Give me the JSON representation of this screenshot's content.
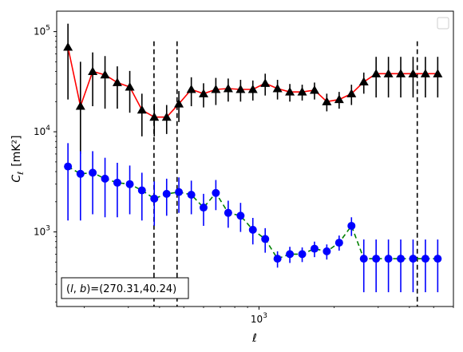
{
  "chart_data": {
    "type": "line",
    "title": "",
    "xlabel": "ℓ",
    "ylabel": "C",
    "ylabel_subscript": "ℓ",
    "ylabel_unit": "[mK²]",
    "x_scale": "log",
    "y_scale": "log",
    "xlim": [
      155,
      6000
    ],
    "ylim": [
      180,
      160000
    ],
    "x_tick_labels": [
      {
        "value": 1000,
        "base": "10",
        "exp": "3"
      }
    ],
    "y_tick_labels": [
      {
        "value": 1000,
        "base": "10",
        "exp": "3"
      },
      {
        "value": 10000,
        "base": "10",
        "exp": "4"
      },
      {
        "value": 100000,
        "base": "10",
        "exp": "5"
      }
    ],
    "grid": false,
    "legend": "top-right (empty box)",
    "annotation": {
      "text": "(l, b)=(270.31,40.24)",
      "prefix": "(",
      "l": "l",
      "sep": ", ",
      "b": "b",
      "suffix": ")=(270.31,40.24)",
      "position": "bottom-left"
    },
    "vlines": [
      380,
      470,
      4300
    ],
    "series": [
      {
        "line_color": "#ff0000",
        "marker_color": "#000000",
        "marker": "triangle",
        "line_style": "solid",
        "x": [
          172,
          193,
          216,
          242,
          271,
          304,
          340,
          381,
          427,
          478,
          536,
          600,
          672,
          753,
          844,
          945,
          1059,
          1186,
          1329,
          1489,
          1668,
          1868,
          2093,
          2345,
          2627,
          2943,
          3297,
          3693,
          4137,
          4635,
          5192
        ],
        "y": [
          70000,
          18000,
          40000,
          37000,
          31000,
          28000,
          16500,
          14000,
          14000,
          19000,
          26500,
          24000,
          26500,
          27000,
          26500,
          26500,
          30500,
          27000,
          25000,
          25000,
          26000,
          20000,
          21000,
          24000,
          31500,
          38000,
          38000,
          38000,
          38000,
          38000,
          38000
        ],
        "y_err_low": [
          49000,
          12000,
          22000,
          20000,
          14000,
          12500,
          7500,
          5000,
          4500,
          6500,
          8500,
          6500,
          8000,
          7000,
          6500,
          6000,
          7500,
          6000,
          5000,
          4500,
          5000,
          4000,
          4000,
          5500,
          7500,
          16000,
          16000,
          16000,
          16000,
          16000,
          16000
        ],
        "y_err_high": [
          50000,
          32000,
          22000,
          20000,
          14000,
          12500,
          7500,
          5000,
          4500,
          6500,
          8500,
          6500,
          8000,
          7000,
          6500,
          6000,
          7500,
          6000,
          5000,
          4500,
          5000,
          4000,
          4000,
          5500,
          7500,
          18000,
          18000,
          18000,
          18000,
          18000,
          18000
        ]
      },
      {
        "line_color": "#008000",
        "marker_color": "#0000ff",
        "marker": "circle",
        "line_style": "dashed",
        "x": [
          172,
          193,
          216,
          242,
          271,
          304,
          340,
          381,
          427,
          478,
          536,
          600,
          672,
          753,
          844,
          945,
          1059,
          1186,
          1329,
          1489,
          1668,
          1868,
          2093,
          2345,
          2627,
          2943,
          3297,
          3693,
          4137,
          4635,
          5192
        ],
        "y": [
          4500,
          3800,
          3900,
          3400,
          3100,
          3000,
          2600,
          2150,
          2400,
          2500,
          2350,
          1750,
          2450,
          1550,
          1450,
          1050,
          850,
          540,
          600,
          600,
          680,
          640,
          780,
          1150,
          540,
          540,
          540,
          540,
          540,
          540,
          540
        ],
        "y_err_low": [
          3200,
          2500,
          2400,
          2000,
          1700,
          1500,
          1300,
          1000,
          950,
          950,
          850,
          600,
          800,
          450,
          450,
          300,
          230,
          100,
          110,
          100,
          120,
          110,
          130,
          240,
          290,
          290,
          290,
          290,
          290,
          290,
          290
        ],
        "y_err_high": [
          3200,
          2600,
          2500,
          2100,
          1800,
          1600,
          1300,
          1050,
          1000,
          1000,
          900,
          650,
          850,
          500,
          500,
          330,
          240,
          100,
          110,
          100,
          120,
          110,
          140,
          250,
          300,
          300,
          300,
          300,
          300,
          300,
          300
        ]
      }
    ]
  }
}
